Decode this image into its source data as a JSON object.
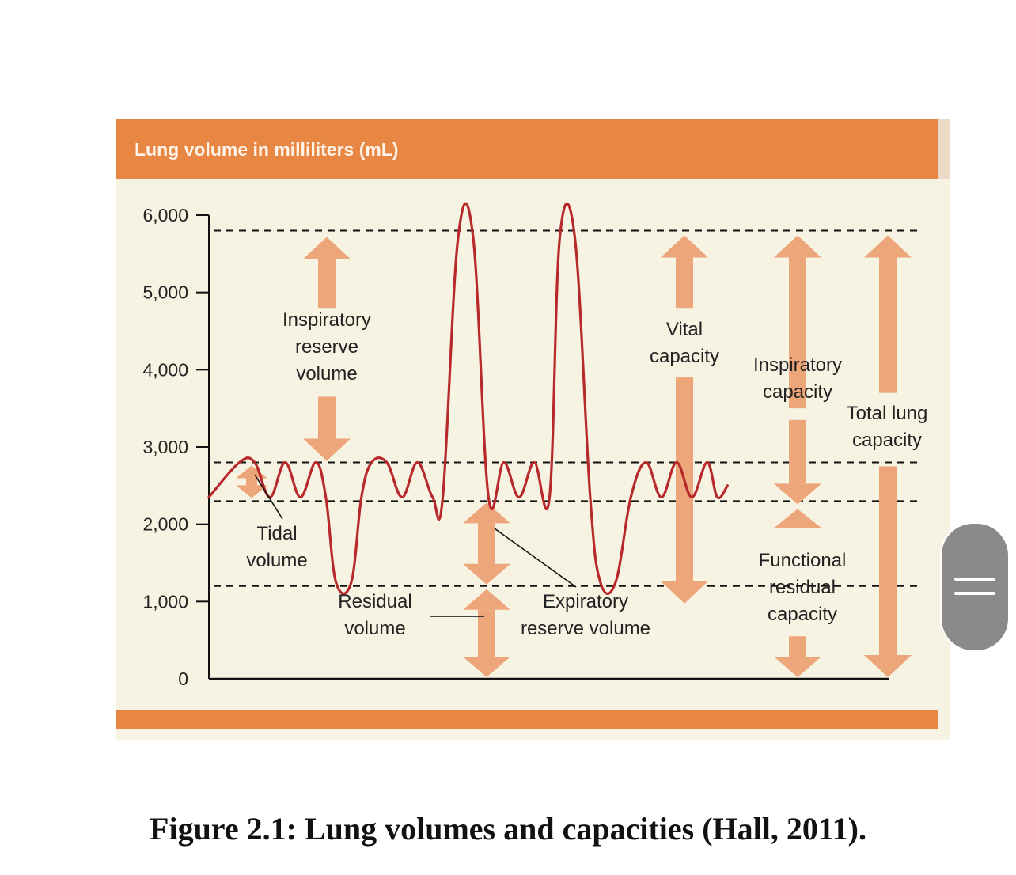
{
  "colors": {
    "header": "#e88744",
    "panel": "#f7f3e3",
    "trace": "#b8292c",
    "arrow": "#eda57a",
    "axis": "#111111",
    "text": "#222222"
  },
  "figure_caption": "Figure 2.1: Lung volumes and capacities (Hall, 2011).",
  "chart_data": {
    "type": "line",
    "title": "Lung volume in milliliters (mL)",
    "ylim": [
      0,
      6000
    ],
    "yticks": [
      {
        "value": 0,
        "label": "0"
      },
      {
        "value": 1000,
        "label": "1,000"
      },
      {
        "value": 2000,
        "label": "2,000"
      },
      {
        "value": 3000,
        "label": "3,000"
      },
      {
        "value": 4000,
        "label": "4,000"
      },
      {
        "value": 5000,
        "label": "5,000"
      },
      {
        "value": 6000,
        "label": "6,000"
      }
    ],
    "reference_levels": [
      {
        "name": "total_lung_capacity",
        "value": 5800
      },
      {
        "name": "end_inspiration",
        "value": 2800
      },
      {
        "name": "end_expiration",
        "value": 2300
      },
      {
        "name": "residual_volume",
        "value": 1200
      }
    ],
    "trace": [
      [
        0,
        2350
      ],
      [
        3,
        2800
      ],
      [
        4.5,
        2800
      ],
      [
        6,
        2350
      ],
      [
        7.5,
        2800
      ],
      [
        9,
        2350
      ],
      [
        10.5,
        2800
      ],
      [
        11.5,
        2350
      ],
      [
        12.5,
        1250
      ],
      [
        14,
        1250
      ],
      [
        15,
        2350
      ],
      [
        16,
        2800
      ],
      [
        17.5,
        2800
      ],
      [
        19,
        2350
      ],
      [
        20.5,
        2800
      ],
      [
        22,
        2350
      ],
      [
        23,
        2350
      ],
      [
        24.5,
        5700
      ],
      [
        26,
        5700
      ],
      [
        27.5,
        2350
      ],
      [
        29,
        2800
      ],
      [
        30.5,
        2350
      ],
      [
        32,
        2800
      ],
      [
        33.5,
        2350
      ],
      [
        34.5,
        5700
      ],
      [
        36,
        5700
      ],
      [
        37.5,
        2350
      ],
      [
        38.5,
        1250
      ],
      [
        40,
        1250
      ],
      [
        41.5,
        2350
      ],
      [
        43,
        2800
      ],
      [
        44.5,
        2350
      ],
      [
        46,
        2800
      ],
      [
        47.5,
        2350
      ],
      [
        49,
        2800
      ],
      [
        50,
        2350
      ],
      [
        51,
        2500
      ]
    ],
    "annotations": [
      {
        "id": "tidal_volume",
        "lines": [
          "Tidal",
          "volume"
        ]
      },
      {
        "id": "inspiratory_reserve_volume",
        "lines": [
          "Inspiratory",
          "reserve",
          "volume"
        ]
      },
      {
        "id": "residual_volume",
        "lines": [
          "Residual",
          "volume"
        ]
      },
      {
        "id": "expiratory_reserve_volume",
        "lines": [
          "Expiratory",
          "reserve volume"
        ]
      },
      {
        "id": "vital_capacity",
        "lines": [
          "Vital",
          "capacity"
        ]
      },
      {
        "id": "inspiratory_capacity",
        "lines": [
          "Inspiratory",
          "capacity"
        ]
      },
      {
        "id": "total_lung_capacity",
        "lines": [
          "Total lung",
          "capacity"
        ]
      },
      {
        "id": "functional_residual_capacity",
        "lines": [
          "Functional",
          "residual",
          "capacity"
        ]
      }
    ]
  }
}
